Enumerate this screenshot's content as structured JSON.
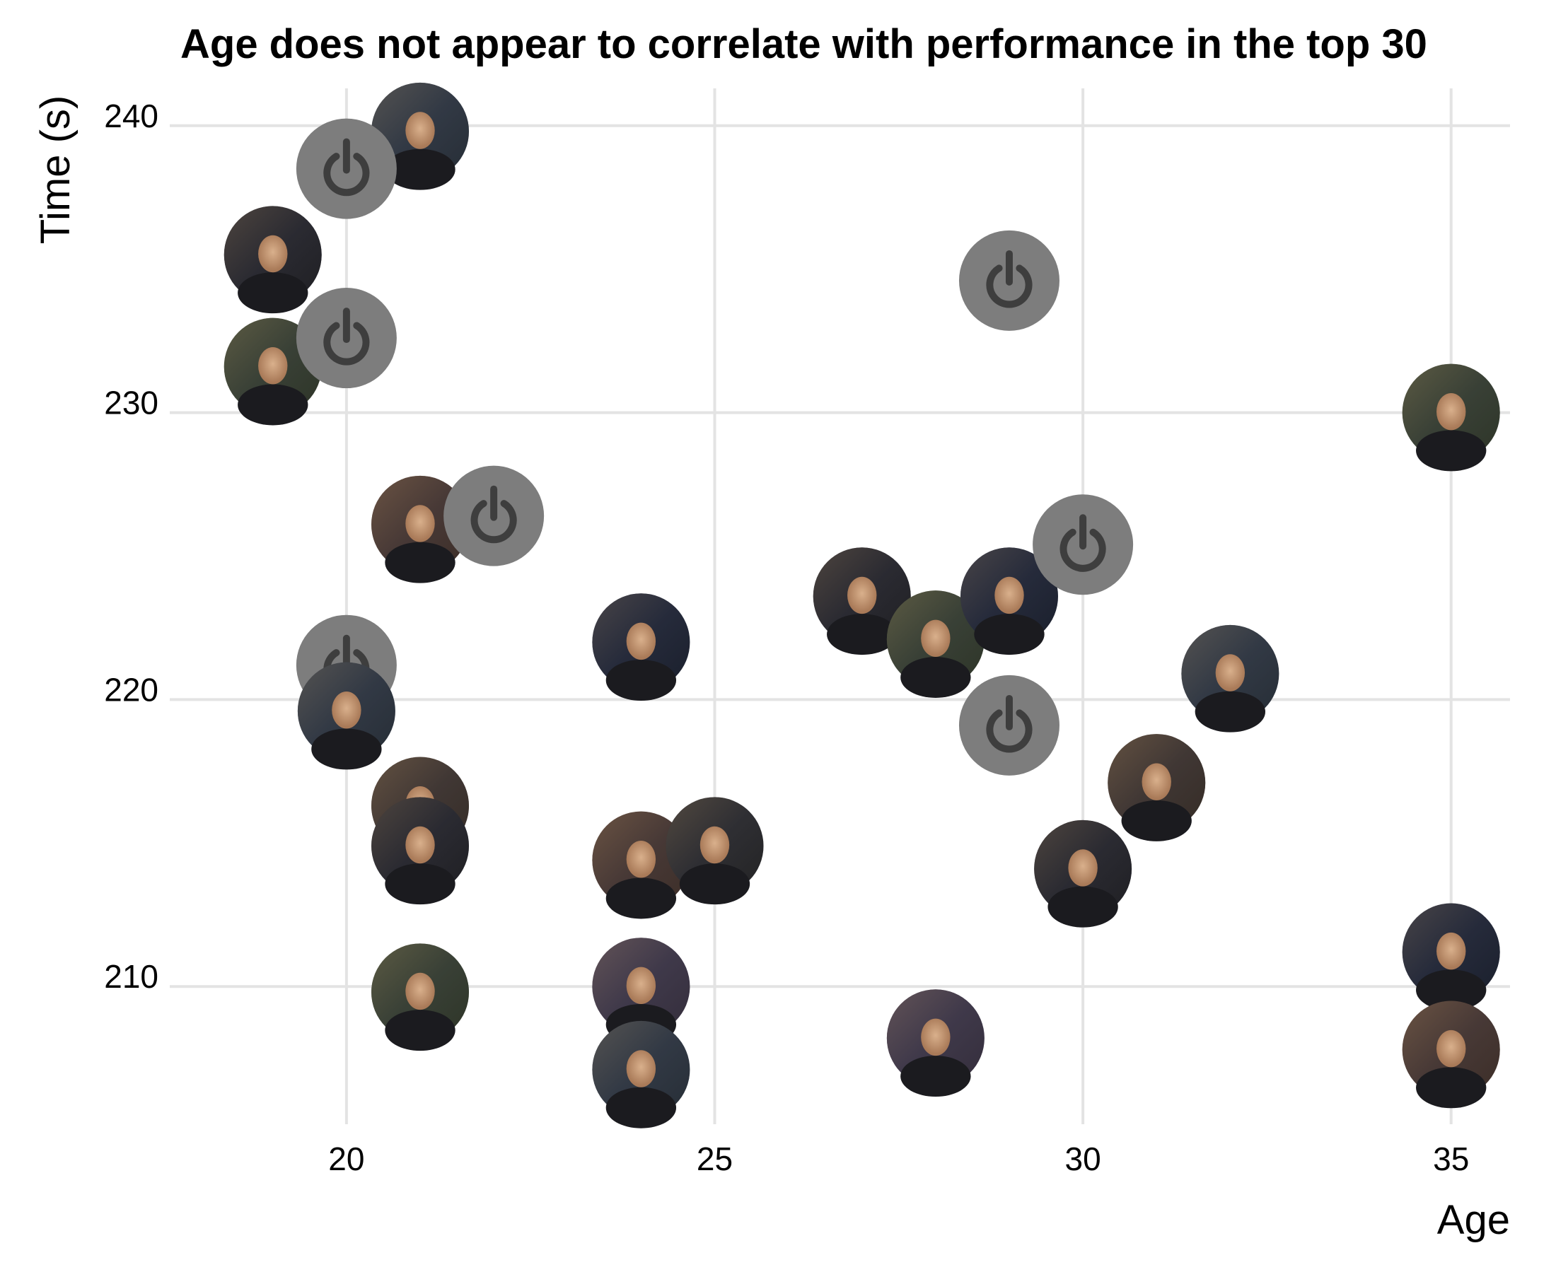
{
  "chart_data": {
    "type": "scatter",
    "title": "Age does not appear to correlate with performance in the top 30",
    "xlabel": "Age",
    "ylabel": "Time (s)",
    "xlim": [
      17.6,
      35.8
    ],
    "ylim": [
      205.2,
      241.3
    ],
    "x_ticks": [
      20,
      25,
      30,
      35
    ],
    "y_ticks": [
      210,
      220,
      230,
      240
    ],
    "grid": true,
    "legend": "none",
    "marker": "circular rider portrait photos; grey power-symbol placeholder where no photo",
    "points": [
      {
        "x": 21,
        "y": 239.8,
        "photo": true
      },
      {
        "x": 20,
        "y": 238.5,
        "photo": false
      },
      {
        "x": 19,
        "y": 235.5,
        "photo": true
      },
      {
        "x": 19,
        "y": 231.6,
        "photo": true
      },
      {
        "x": 20,
        "y": 232.6,
        "photo": false
      },
      {
        "x": 21,
        "y": 226.1,
        "photo": true
      },
      {
        "x": 22,
        "y": 226.4,
        "photo": false
      },
      {
        "x": 20,
        "y": 221.2,
        "photo": false
      },
      {
        "x": 20,
        "y": 219.6,
        "photo": true
      },
      {
        "x": 21,
        "y": 216.3,
        "photo": true
      },
      {
        "x": 21,
        "y": 214.9,
        "photo": true
      },
      {
        "x": 21,
        "y": 209.8,
        "photo": true
      },
      {
        "x": 24,
        "y": 222.0,
        "photo": true
      },
      {
        "x": 24,
        "y": 214.4,
        "photo": true
      },
      {
        "x": 25,
        "y": 214.9,
        "photo": true
      },
      {
        "x": 24,
        "y": 210.0,
        "photo": true
      },
      {
        "x": 24,
        "y": 207.1,
        "photo": true
      },
      {
        "x": 29,
        "y": 234.6,
        "photo": false
      },
      {
        "x": 27,
        "y": 223.6,
        "photo": true
      },
      {
        "x": 28,
        "y": 222.1,
        "photo": true
      },
      {
        "x": 29,
        "y": 223.6,
        "photo": true
      },
      {
        "x": 30,
        "y": 225.4,
        "photo": false
      },
      {
        "x": 29,
        "y": 219.1,
        "photo": false
      },
      {
        "x": 28,
        "y": 208.2,
        "photo": true
      },
      {
        "x": 32,
        "y": 220.9,
        "photo": true
      },
      {
        "x": 31,
        "y": 217.1,
        "photo": true
      },
      {
        "x": 30,
        "y": 214.1,
        "photo": true
      },
      {
        "x": 35,
        "y": 230.0,
        "photo": true
      },
      {
        "x": 35,
        "y": 211.2,
        "photo": true
      },
      {
        "x": 35,
        "y": 207.8,
        "photo": true
      }
    ]
  }
}
